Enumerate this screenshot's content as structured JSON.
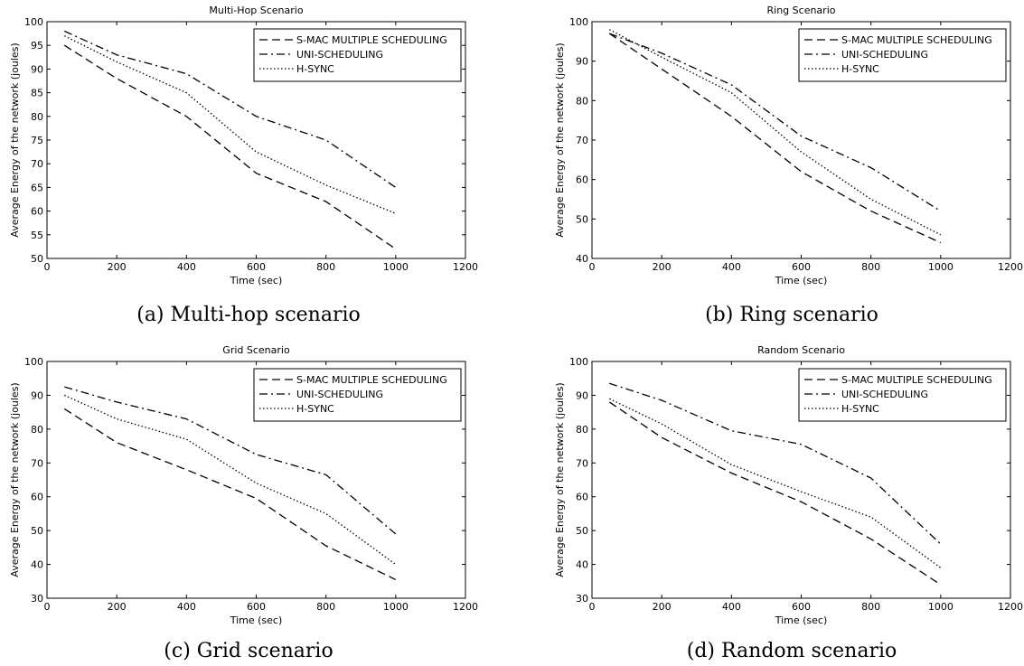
{
  "chart_data": [
    {
      "type": "line",
      "title": "Multi-Hop Scenario",
      "caption": "(a) Multi-hop scenario",
      "xlabel": "Time (sec)",
      "ylabel": "Average Energy of the network (joules)",
      "xlim": [
        0,
        1200
      ],
      "ylim": [
        50,
        100
      ],
      "xticks": [
        0,
        200,
        400,
        600,
        800,
        1000,
        1200
      ],
      "yticks": [
        50,
        55,
        60,
        65,
        70,
        75,
        80,
        85,
        90,
        95,
        100
      ],
      "x": [
        50,
        200,
        400,
        600,
        800,
        1000
      ],
      "legend_position": "top-right",
      "series": [
        {
          "name": "S-MAC MULTIPLE SCHEDULING",
          "style": "dashed",
          "values": [
            95,
            88,
            80,
            68,
            62,
            52
          ]
        },
        {
          "name": "UNI-SCHEDULING",
          "style": "dashdot",
          "values": [
            98,
            93,
            89,
            80,
            75,
            65
          ]
        },
        {
          "name": "H-SYNC",
          "style": "dotted",
          "values": [
            97,
            91.5,
            85,
            72.5,
            65.5,
            59.5
          ]
        }
      ]
    },
    {
      "type": "line",
      "title": "Ring Scenario",
      "caption": "(b) Ring scenario",
      "xlabel": "Time (sec)",
      "ylabel": "Average Energy of the network (joules)",
      "xlim": [
        0,
        1200
      ],
      "ylim": [
        40,
        100
      ],
      "xticks": [
        0,
        200,
        400,
        600,
        800,
        1000,
        1200
      ],
      "yticks": [
        40,
        50,
        60,
        70,
        80,
        90,
        100
      ],
      "x": [
        50,
        200,
        400,
        600,
        800,
        1000
      ],
      "legend_position": "top-right",
      "series": [
        {
          "name": "S-MAC MULTIPLE SCHEDULING",
          "style": "dashed",
          "values": [
            97,
            88,
            76,
            62,
            52,
            44
          ]
        },
        {
          "name": "UNI-SCHEDULING",
          "style": "dashdot",
          "values": [
            97,
            92,
            84,
            71,
            63,
            52
          ]
        },
        {
          "name": "H-SYNC",
          "style": "dotted",
          "values": [
            98,
            91,
            82,
            67,
            55,
            46
          ]
        }
      ]
    },
    {
      "type": "line",
      "title": "Grid Scenario",
      "caption": "(c) Grid scenario",
      "xlabel": "Time (sec)",
      "ylabel": "Average Energy of the network (joules)",
      "xlim": [
        0,
        1200
      ],
      "ylim": [
        30,
        100
      ],
      "xticks": [
        0,
        200,
        400,
        600,
        800,
        1000,
        1200
      ],
      "yticks": [
        30,
        40,
        50,
        60,
        70,
        80,
        90,
        100
      ],
      "x": [
        50,
        200,
        400,
        600,
        800,
        1000
      ],
      "legend_position": "top-right",
      "series": [
        {
          "name": "S-MAC MULTIPLE SCHEDULING",
          "style": "dashed",
          "values": [
            86,
            76,
            68,
            59.5,
            45.5,
            35.5
          ]
        },
        {
          "name": "UNI-SCHEDULING",
          "style": "dashdot",
          "values": [
            92.5,
            88,
            83,
            72.5,
            66.5,
            49
          ]
        },
        {
          "name": "H-SYNC",
          "style": "dotted",
          "values": [
            90,
            83,
            77,
            64,
            55,
            40
          ]
        }
      ]
    },
    {
      "type": "line",
      "title": "Random Scenario",
      "caption": "(d) Random scenario",
      "xlabel": "Time (sec)",
      "ylabel": "Average Energy of the network (joules)",
      "xlim": [
        0,
        1200
      ],
      "ylim": [
        30,
        100
      ],
      "xticks": [
        0,
        200,
        400,
        600,
        800,
        1000,
        1200
      ],
      "yticks": [
        30,
        40,
        50,
        60,
        70,
        80,
        90,
        100
      ],
      "x": [
        50,
        200,
        400,
        600,
        800,
        1000
      ],
      "legend_position": "top-right",
      "series": [
        {
          "name": "S-MAC MULTIPLE SCHEDULING",
          "style": "dashed",
          "values": [
            88,
            77.5,
            67,
            58.5,
            47.5,
            34
          ]
        },
        {
          "name": "UNI-SCHEDULING",
          "style": "dashdot",
          "values": [
            93.5,
            88.5,
            79.5,
            75.5,
            65.5,
            46
          ]
        },
        {
          "name": "H-SYNC",
          "style": "dotted",
          "values": [
            89,
            81.5,
            69.5,
            61.5,
            54,
            39
          ]
        }
      ]
    }
  ]
}
